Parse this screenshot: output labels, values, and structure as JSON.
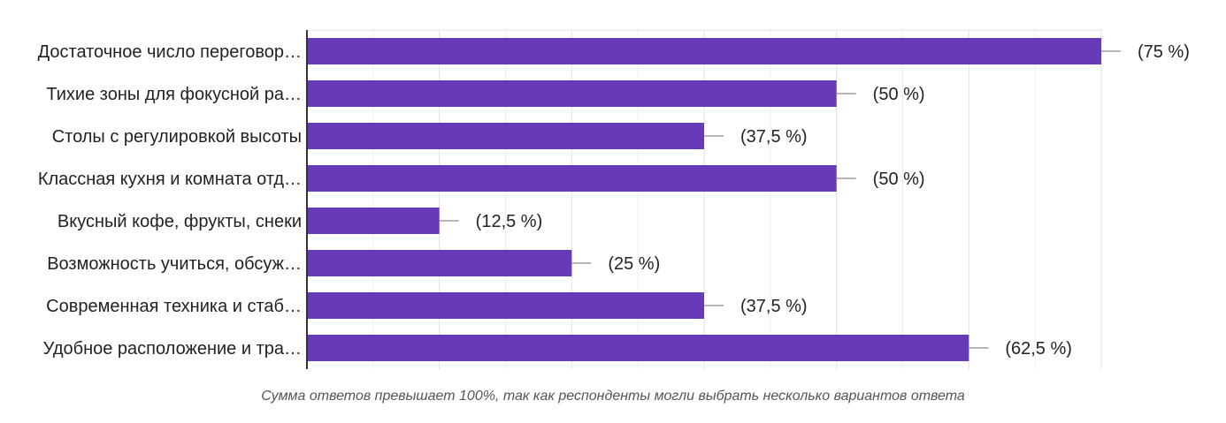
{
  "chart_data": {
    "type": "bar",
    "orientation": "horizontal",
    "categories": [
      "Достаточное число переговор…",
      "Тихие зоны для фокусной ра…",
      "Столы с регулировкой высоты",
      "Классная кухня и комната отд…",
      "Вкусный кофе, фрукты, снеки",
      "Возможность учиться, обсуж…",
      "Современная техника и стаб…",
      "Удобное расположение и тра…"
    ],
    "values": [
      6,
      4,
      3,
      4,
      1,
      2,
      3,
      5
    ],
    "value_labels": [
      "(75 %)",
      "(50 %)",
      "(37,5 %)",
      "(50 %)",
      "(12,5 %)",
      "(25 %)",
      "(37,5 %)",
      "(62,5 %)"
    ],
    "xlim": [
      0,
      6
    ],
    "grid": true,
    "bar_color": "#673ab7",
    "footnote": "Сумма ответов превышает 100%, так как респонденты могли выбрать несколько вариантов ответа"
  }
}
